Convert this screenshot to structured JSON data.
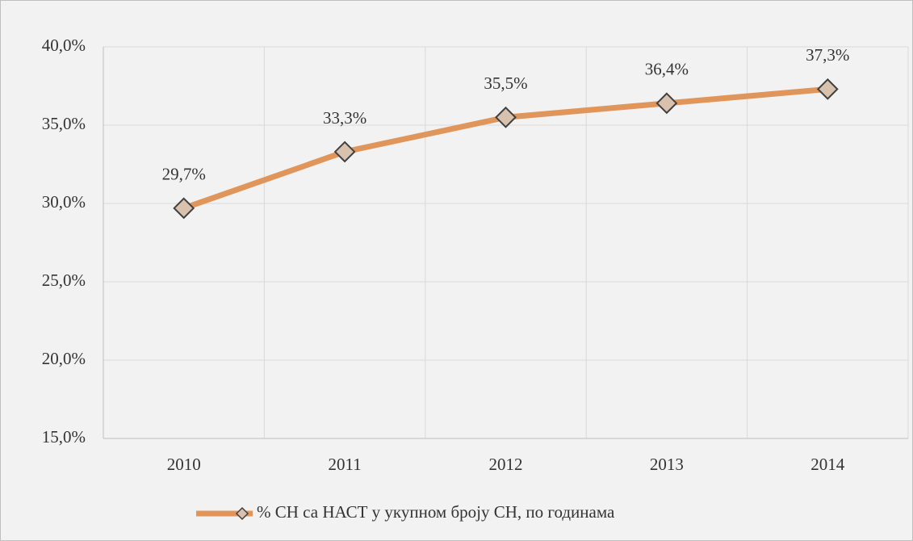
{
  "chart_data": {
    "type": "line",
    "categories": [
      "2010",
      "2011",
      "2012",
      "2013",
      "2014"
    ],
    "series": [
      {
        "name": "% СН са НАСТ у укупном броју СН, по годинама",
        "color": "#e0955a",
        "marker_fill": "#d8c2ae",
        "values": [
          29.7,
          33.3,
          35.5,
          36.4,
          37.3
        ],
        "value_labels": [
          "29,7%",
          "33,3%",
          "35,5%",
          "36,4%",
          "37,3%"
        ]
      }
    ],
    "ylim": [
      15,
      40
    ],
    "yticks": [
      {
        "value": 15,
        "label": "15,0%"
      },
      {
        "value": 20,
        "label": "20,0%"
      },
      {
        "value": 25,
        "label": "25,0%"
      },
      {
        "value": 30,
        "label": "30,0%"
      },
      {
        "value": 35,
        "label": "35,0%"
      },
      {
        "value": 40,
        "label": "40,0%"
      }
    ],
    "grid": true,
    "legend": "bottom"
  }
}
